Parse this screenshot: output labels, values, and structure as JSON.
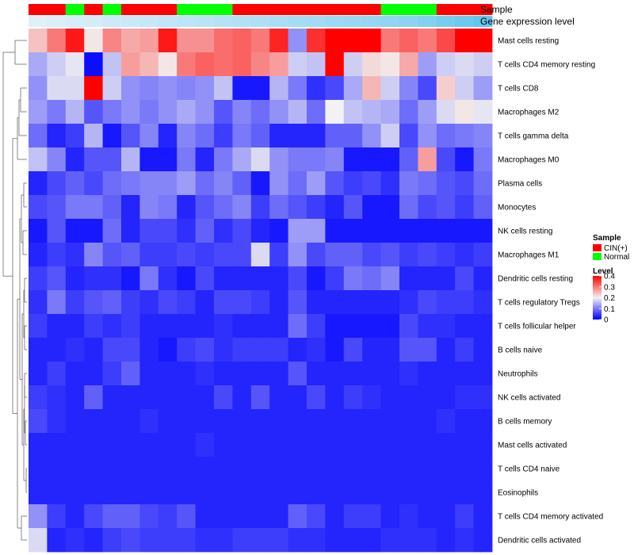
{
  "chart_data": {
    "type": "heatmap",
    "annotations": {
      "sample": {
        "label": "Sample",
        "values": [
          "CIN(+)",
          "CIN(+)",
          "Normal",
          "CIN(+)",
          "Normal",
          "CIN(+)",
          "CIN(+)",
          "CIN(+)",
          "Normal",
          "Normal",
          "Normal",
          "CIN(+)",
          "CIN(+)",
          "CIN(+)",
          "CIN(+)",
          "CIN(+)",
          "CIN(+)",
          "CIN(+)",
          "CIN(+)",
          "Normal",
          "Normal",
          "Normal",
          "CIN(+)",
          "CIN(+)",
          "CIN(+)"
        ]
      },
      "gene_expression": {
        "label": "Gene expression level",
        "values": [
          0.05,
          0.08,
          0.11,
          0.14,
          0.17,
          0.2,
          0.23,
          0.26,
          0.29,
          0.32,
          0.35,
          0.38,
          0.41,
          0.44,
          0.47,
          0.5,
          0.53,
          0.56,
          0.59,
          0.62,
          0.66,
          0.72,
          0.8,
          0.88,
          0.95
        ]
      }
    },
    "rows": [
      "Mast cells resting",
      "T cells CD4 memory resting",
      "T cells CD8",
      "Macrophages M2",
      "T cells gamma delta",
      "Macrophages M0",
      "Plasma cells",
      "Monocytes",
      "NK cells resting",
      "Macrophages M1",
      "Dendritic cells resting",
      "T cells regulatory  Tregs",
      "T cells follicular helper",
      "B cells naive",
      "Neutrophils",
      "NK cells activated",
      "B cells memory",
      "Mast cells activated",
      "T cells CD4 naive",
      "Eosinophils",
      "T cells CD4 memory activated",
      "Dendritic cells activated"
    ],
    "values": [
      [
        0.24,
        0.3,
        0.38,
        0.21,
        0.29,
        0.26,
        0.27,
        0.38,
        0.28,
        0.28,
        0.31,
        0.32,
        0.3,
        0.37,
        0.12,
        0.36,
        0.4,
        0.4,
        0.4,
        0.3,
        0.32,
        0.3,
        0.34,
        0.4,
        0.4
      ],
      [
        0.14,
        0.17,
        0.19,
        0.01,
        0.16,
        0.27,
        0.25,
        0.21,
        0.3,
        0.32,
        0.31,
        0.32,
        0.29,
        0.27,
        0.17,
        0.16,
        0.4,
        0.17,
        0.22,
        0.21,
        0.26,
        0.13,
        0.17,
        0.18,
        0.17
      ],
      [
        0.12,
        0.18,
        0.18,
        0.4,
        0.17,
        0.12,
        0.11,
        0.12,
        0.11,
        0.12,
        0.16,
        0.02,
        0.02,
        0.15,
        0.1,
        0.04,
        0.06,
        0.14,
        0.25,
        0.17,
        0.11,
        0.06,
        0.23,
        0.17,
        0.13
      ],
      [
        0.13,
        0.1,
        0.15,
        0.07,
        0.1,
        0.12,
        0.1,
        0.12,
        0.14,
        0.12,
        0.07,
        0.11,
        0.09,
        0.12,
        0.15,
        0.09,
        0.2,
        0.16,
        0.15,
        0.14,
        0.09,
        0.13,
        0.18,
        0.21,
        0.19
      ],
      [
        0.09,
        0.03,
        0.05,
        0.15,
        0.02,
        0.07,
        0.11,
        0.03,
        0.11,
        0.09,
        0.05,
        0.1,
        0.08,
        0.03,
        0.03,
        0.03,
        0.08,
        0.08,
        0.12,
        0.17,
        0.06,
        0.12,
        0.09,
        0.1,
        0.11
      ],
      [
        0.16,
        0.11,
        0.03,
        0.07,
        0.07,
        0.15,
        0.02,
        0.02,
        0.1,
        0.03,
        0.1,
        0.14,
        0.18,
        0.12,
        0.1,
        0.1,
        0.11,
        0.02,
        0.02,
        0.02,
        0.08,
        0.27,
        0.06,
        0.02,
        0.1
      ],
      [
        0.03,
        0.06,
        0.08,
        0.06,
        0.09,
        0.1,
        0.11,
        0.11,
        0.13,
        0.09,
        0.11,
        0.08,
        0.02,
        0.12,
        0.09,
        0.13,
        0.07,
        0.05,
        0.06,
        0.04,
        0.1,
        0.09,
        0.07,
        0.06,
        0.09
      ],
      [
        0.06,
        0.07,
        0.1,
        0.1,
        0.08,
        0.03,
        0.11,
        0.1,
        0.03,
        0.07,
        0.09,
        0.11,
        0.05,
        0.09,
        0.07,
        0.05,
        0.03,
        0.07,
        0.02,
        0.02,
        0.09,
        0.06,
        0.07,
        0.05,
        0.08
      ],
      [
        0.02,
        0.07,
        0.02,
        0.02,
        0.09,
        0.03,
        0.06,
        0.06,
        0.04,
        0.08,
        0.04,
        0.06,
        0.03,
        0.02,
        0.13,
        0.13,
        0.02,
        0.02,
        0.02,
        0.02,
        0.02,
        0.02,
        0.02,
        0.02,
        0.02
      ],
      [
        0.03,
        0.05,
        0.04,
        0.11,
        0.07,
        0.08,
        0.05,
        0.05,
        0.06,
        0.05,
        0.06,
        0.06,
        0.18,
        0.05,
        0.12,
        0.06,
        0.08,
        0.08,
        0.06,
        0.07,
        0.05,
        0.06,
        0.05,
        0.04,
        0.05
      ],
      [
        0.05,
        0.07,
        0.03,
        0.04,
        0.04,
        0.02,
        0.1,
        0.04,
        0.02,
        0.06,
        0.03,
        0.03,
        0.03,
        0.03,
        0.06,
        0.02,
        0.05,
        0.1,
        0.09,
        0.11,
        0.03,
        0.03,
        0.03,
        0.06,
        0.03
      ],
      [
        0.04,
        0.1,
        0.05,
        0.07,
        0.08,
        0.05,
        0.04,
        0.06,
        0.05,
        0.03,
        0.06,
        0.06,
        0.05,
        0.03,
        0.07,
        0.03,
        0.03,
        0.03,
        0.03,
        0.03,
        0.04,
        0.06,
        0.05,
        0.05,
        0.04
      ],
      [
        0.05,
        0.03,
        0.03,
        0.05,
        0.04,
        0.05,
        0.03,
        0.03,
        0.03,
        0.03,
        0.04,
        0.03,
        0.03,
        0.03,
        0.09,
        0.05,
        0.02,
        0.02,
        0.02,
        0.02,
        0.06,
        0.04,
        0.04,
        0.03,
        0.03
      ],
      [
        0.03,
        0.03,
        0.04,
        0.03,
        0.06,
        0.06,
        0.03,
        0.02,
        0.05,
        0.06,
        0.04,
        0.05,
        0.05,
        0.05,
        0.03,
        0.04,
        0.02,
        0.06,
        0.03,
        0.03,
        0.07,
        0.07,
        0.03,
        0.05,
        0.03
      ],
      [
        0.03,
        0.05,
        0.03,
        0.03,
        0.05,
        0.08,
        0.03,
        0.03,
        0.03,
        0.04,
        0.03,
        0.03,
        0.03,
        0.03,
        0.07,
        0.03,
        0.03,
        0.03,
        0.03,
        0.03,
        0.04,
        0.03,
        0.03,
        0.03,
        0.03
      ],
      [
        0.05,
        0.04,
        0.03,
        0.08,
        0.03,
        0.03,
        0.03,
        0.03,
        0.03,
        0.03,
        0.06,
        0.03,
        0.07,
        0.03,
        0.03,
        0.06,
        0.03,
        0.05,
        0.04,
        0.03,
        0.03,
        0.03,
        0.03,
        0.04,
        0.04
      ],
      [
        0.06,
        0.04,
        0.03,
        0.03,
        0.03,
        0.03,
        0.04,
        0.03,
        0.03,
        0.03,
        0.03,
        0.03,
        0.03,
        0.03,
        0.03,
        0.03,
        0.03,
        0.03,
        0.03,
        0.03,
        0.03,
        0.03,
        0.04,
        0.03,
        0.03
      ],
      [
        0.03,
        0.03,
        0.03,
        0.03,
        0.03,
        0.03,
        0.03,
        0.03,
        0.03,
        0.04,
        0.03,
        0.03,
        0.03,
        0.03,
        0.03,
        0.03,
        0.03,
        0.03,
        0.03,
        0.03,
        0.03,
        0.03,
        0.03,
        0.03,
        0.03
      ],
      [
        0.03,
        0.03,
        0.03,
        0.03,
        0.03,
        0.03,
        0.03,
        0.03,
        0.03,
        0.03,
        0.03,
        0.03,
        0.03,
        0.03,
        0.03,
        0.03,
        0.03,
        0.03,
        0.03,
        0.03,
        0.03,
        0.03,
        0.03,
        0.03,
        0.03
      ],
      [
        0.03,
        0.03,
        0.03,
        0.03,
        0.03,
        0.03,
        0.03,
        0.03,
        0.03,
        0.03,
        0.03,
        0.03,
        0.03,
        0.03,
        0.03,
        0.03,
        0.03,
        0.03,
        0.03,
        0.03,
        0.03,
        0.03,
        0.03,
        0.03,
        0.03
      ],
      [
        0.12,
        0.05,
        0.03,
        0.06,
        0.08,
        0.08,
        0.06,
        0.05,
        0.07,
        0.03,
        0.03,
        0.03,
        0.03,
        0.03,
        0.08,
        0.06,
        0.03,
        0.05,
        0.05,
        0.03,
        0.04,
        0.03,
        0.03,
        0.05,
        0.03
      ],
      [
        0.18,
        0.03,
        0.04,
        0.03,
        0.05,
        0.06,
        0.05,
        0.05,
        0.05,
        0.04,
        0.04,
        0.05,
        0.05,
        0.05,
        0.04,
        0.04,
        0.03,
        0.03,
        0.03,
        0.04,
        0.04,
        0.04,
        0.03,
        0.04,
        0.03
      ]
    ],
    "color_scale": {
      "min": 0,
      "mid": 0.2,
      "max": 0.4,
      "low": "#0000FF",
      "midColor": "#F2F2F2",
      "high": "#FF0000"
    },
    "annotation_colors": {
      "CIN(+)": "#FF0000",
      "Normal": "#00FF00",
      "expr_low": "#E6F2FA",
      "expr_high": "#5BC4ED"
    },
    "legend": {
      "sample_title": "Sample",
      "sample_items": [
        "CIN(+)",
        "Normal"
      ],
      "level_title": "Level",
      "level_ticks": [
        0,
        0.1,
        0.2,
        0.3,
        0.4
      ],
      "level_tick_labels": [
        "0",
        "0.1",
        "0.2",
        "0.3",
        "0.4"
      ],
      "placement": "right"
    },
    "dendrogram": "left"
  }
}
